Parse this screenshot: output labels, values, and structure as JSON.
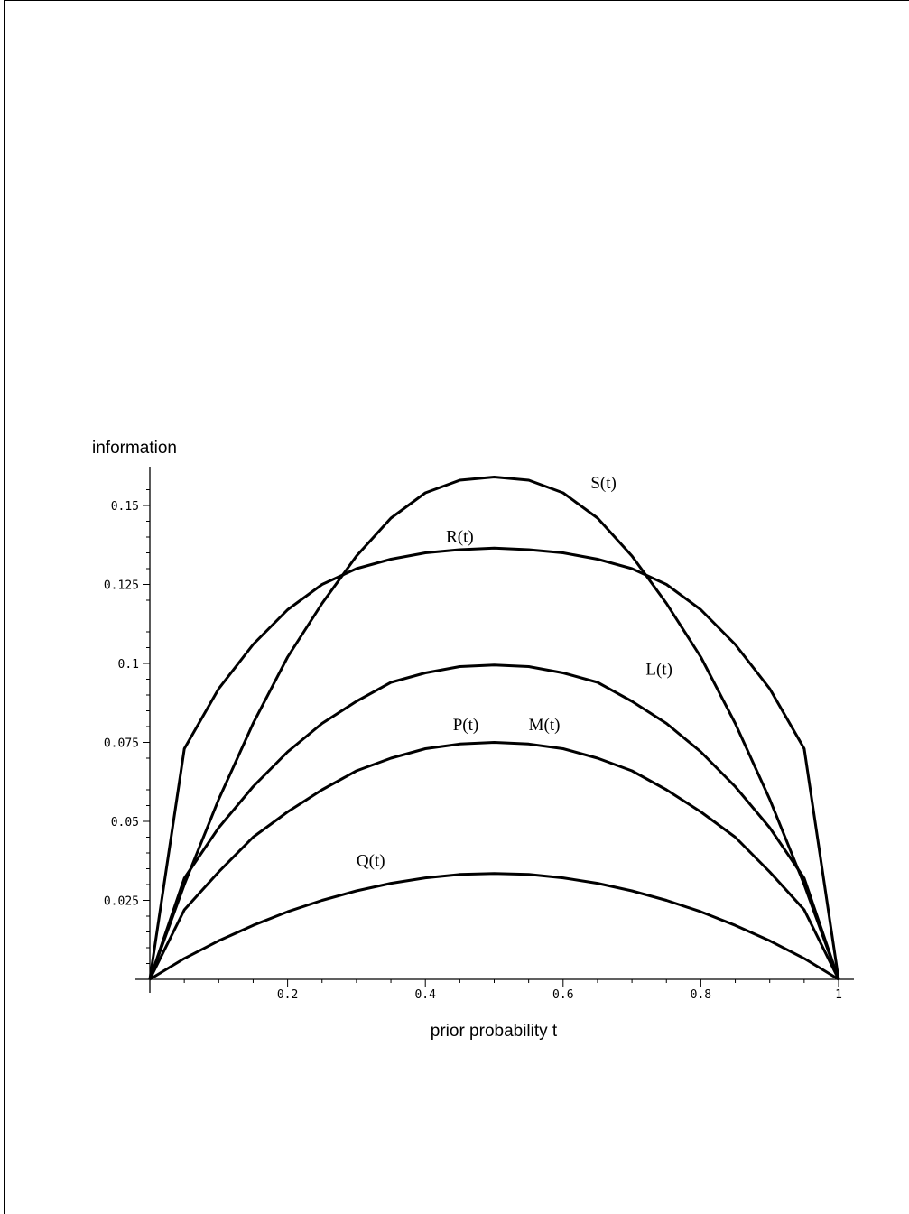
{
  "chart_data": {
    "type": "line",
    "xlabel": "prior probability t",
    "ylabel": "information",
    "xlim": [
      0,
      1
    ],
    "ylim": [
      0,
      0.16
    ],
    "x_ticks": [
      0.2,
      0.4,
      0.6,
      0.8,
      1
    ],
    "x_tick_labels": [
      "0.2",
      "0.4",
      "0.6",
      "0.8",
      "1"
    ],
    "y_ticks": [
      0.025,
      0.05,
      0.075,
      0.1,
      0.125,
      0.15
    ],
    "y_tick_labels": [
      "0.025",
      "0.05",
      "0.075",
      "0.1",
      "0.125",
      "0.15"
    ],
    "grid": false,
    "legend": "none (inline curve labels)",
    "x": [
      0,
      0.05,
      0.1,
      0.15,
      0.2,
      0.25,
      0.3,
      0.35,
      0.4,
      0.45,
      0.5,
      0.55,
      0.6,
      0.65,
      0.7,
      0.75,
      0.8,
      0.85,
      0.9,
      0.95,
      1
    ],
    "series": [
      {
        "name": "S(t)",
        "values": [
          0,
          0.03,
          0.057,
          0.081,
          0.102,
          0.119,
          0.134,
          0.146,
          0.154,
          0.158,
          0.159,
          0.158,
          0.154,
          0.146,
          0.134,
          0.119,
          0.102,
          0.081,
          0.057,
          0.03,
          0
        ]
      },
      {
        "name": "R(t)",
        "values": [
          0,
          0.073,
          0.092,
          0.106,
          0.117,
          0.125,
          0.13,
          0.133,
          0.135,
          0.136,
          0.1365,
          0.136,
          0.135,
          0.133,
          0.13,
          0.125,
          0.117,
          0.106,
          0.092,
          0.073,
          0
        ]
      },
      {
        "name": "L(t)",
        "values": [
          0,
          0.032,
          0.048,
          0.061,
          0.072,
          0.081,
          0.088,
          0.094,
          0.097,
          0.099,
          0.0995,
          0.099,
          0.097,
          0.094,
          0.088,
          0.081,
          0.072,
          0.061,
          0.048,
          0.032,
          0
        ]
      },
      {
        "name": "P(t)",
        "values": [
          0,
          0.022,
          0.034,
          0.045,
          0.053,
          0.06,
          0.066,
          0.07,
          0.073,
          0.0745,
          0.075,
          0.0745,
          0.073,
          0.07,
          0.066,
          0.06,
          0.053,
          0.045,
          0.034,
          0.022,
          0
        ]
      },
      {
        "name": "Q(t)",
        "values": [
          0,
          0.0066,
          0.0122,
          0.0171,
          0.0214,
          0.025,
          0.028,
          0.0304,
          0.0321,
          0.0332,
          0.0335,
          0.0332,
          0.0321,
          0.0304,
          0.028,
          0.025,
          0.0214,
          0.0171,
          0.0122,
          0.0066,
          0
        ]
      }
    ],
    "annotations": [
      {
        "text": "S(t)",
        "x": 0.64,
        "y": 0.1555
      },
      {
        "text": "R(t)",
        "x": 0.43,
        "y": 0.1385
      },
      {
        "text": "L(t)",
        "x": 0.72,
        "y": 0.0965
      },
      {
        "text": "P(t)",
        "x": 0.44,
        "y": 0.0788
      },
      {
        "text": "M(t)",
        "x": 0.55,
        "y": 0.0788
      },
      {
        "text": "Q(t)",
        "x": 0.3,
        "y": 0.0358
      }
    ]
  }
}
